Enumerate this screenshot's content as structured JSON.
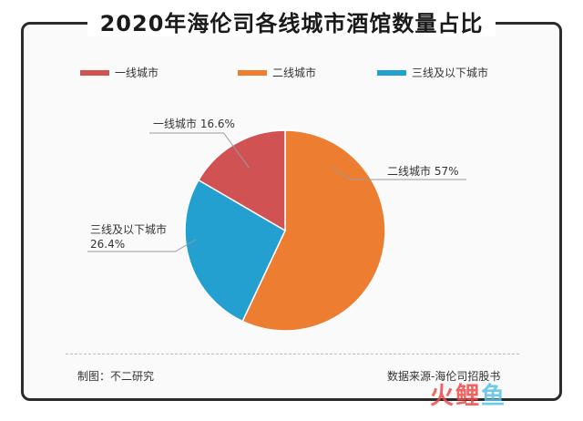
{
  "title": "2020年海伦司各线城市酒馆数量占比",
  "colors": {
    "tier1": "#d05252",
    "tier2": "#ed7d31",
    "tier3": "#23a0d0"
  },
  "legend": [
    {
      "label": "一线城市",
      "color": "#d05252"
    },
    {
      "label": "二线城市",
      "color": "#ed7d31"
    },
    {
      "label": "三线及以下城市",
      "color": "#23a0d0"
    }
  ],
  "chart_data": {
    "type": "pie",
    "title": "2020年海伦司各线城市酒馆数量占比",
    "legend_position": "top",
    "slices": [
      {
        "name": "一线城市",
        "value": 16.6,
        "label_line1": "一线城市 16.6%",
        "label_line2": "",
        "color": "#d05252"
      },
      {
        "name": "二线城市",
        "value": 57,
        "label_line1": "二线城市 57%",
        "label_line2": "",
        "color": "#ed7d31"
      },
      {
        "name": "三线及以下城市",
        "value": 26.4,
        "label_line1": "三线及以下城市",
        "label_line2": "26.4%",
        "color": "#23a0d0"
      }
    ]
  },
  "footer": {
    "left": "制图：不二研究",
    "right": "数据来源-海伦司招股书"
  },
  "watermark": {
    "chars": [
      "火",
      "鲤",
      "鱼"
    ],
    "colors": [
      "#f04848",
      "#f04848",
      "#5bc0e8"
    ]
  }
}
